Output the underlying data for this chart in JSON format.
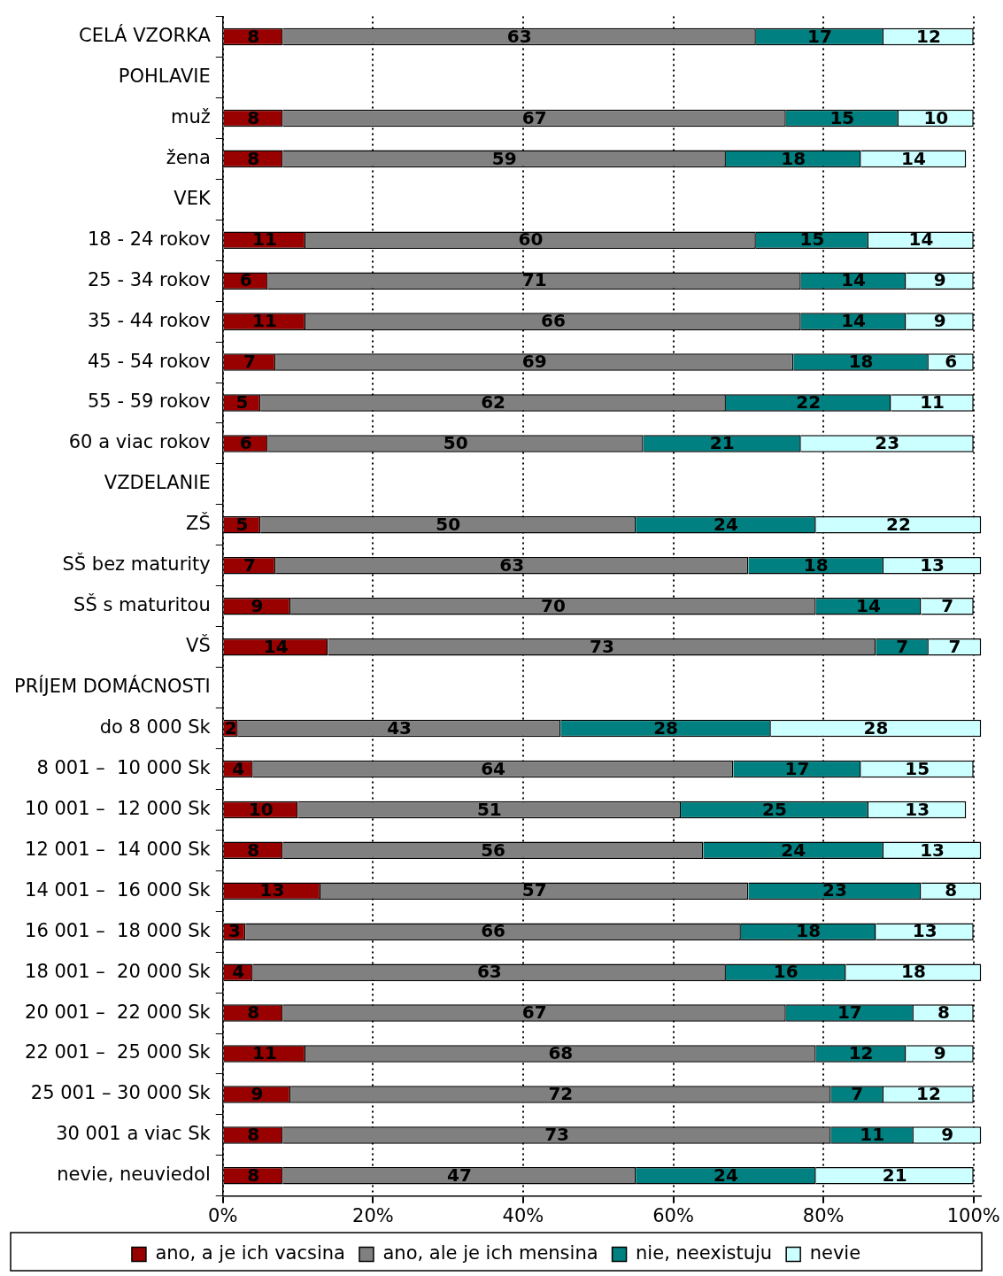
{
  "chart_data": {
    "type": "bar",
    "orientation": "horizontal",
    "stacked": true,
    "data_labels": true,
    "grid": "x",
    "line_style": "dotted",
    "legend": "bottom",
    "categories": [
      "CELÁ VZORKA",
      "POHLAVIE",
      "muž",
      "žena",
      "VEK",
      "18 - 24 rokov",
      "25 - 34 rokov",
      "35 - 44 rokov",
      "45 - 54 rokov",
      "55 - 59 rokov",
      "60 a viac rokov",
      "VZDELANIE",
      "ZŠ",
      "SŠ bez maturity",
      "SŠ s maturitou",
      "VŠ",
      "PRÍJEM DOMÁCNOSTI",
      "do 8 000 Sk",
      "8 001 –  10 000 Sk",
      "10 001 –  12 000 Sk",
      "12 001 –  14 000 Sk",
      "14 001 –  16 000 Sk",
      "16 001 –  18 000 Sk",
      "18 001 –  20 000 Sk",
      "20 001 –  22 000 Sk",
      "22 001 –  25 000 Sk",
      "25 001 – 30 000 Sk",
      "30 001 a viac Sk",
      "nevie, neuviedol"
    ],
    "xlim": [
      0,
      101
    ],
    "xticks": [
      {
        "value": 0,
        "label": "0%"
      },
      {
        "value": 20,
        "label": "20%"
      },
      {
        "value": 40,
        "label": "40%"
      },
      {
        "value": 60,
        "label": "60%"
      },
      {
        "value": 80,
        "label": "80%"
      },
      {
        "value": 100,
        "label": "100%"
      }
    ],
    "series": [
      {
        "name": "ano, a je ich vacsina",
        "color": "#990000",
        "values": [
          8,
          null,
          8,
          8,
          null,
          11,
          6,
          11,
          7,
          5,
          6,
          null,
          5,
          7,
          9,
          14,
          null,
          2,
          4,
          10,
          8,
          13,
          3,
          4,
          8,
          11,
          9,
          8,
          8
        ]
      },
      {
        "name": "ano, ale je ich mensina",
        "color": "#808080",
        "values": [
          63,
          null,
          67,
          59,
          null,
          60,
          71,
          66,
          69,
          62,
          50,
          null,
          50,
          63,
          70,
          73,
          null,
          43,
          64,
          51,
          56,
          57,
          66,
          63,
          67,
          68,
          72,
          73,
          47
        ]
      },
      {
        "name": "nie, neexistuju",
        "color": "#008080",
        "values": [
          17,
          null,
          15,
          18,
          null,
          15,
          14,
          14,
          18,
          22,
          21,
          null,
          24,
          18,
          14,
          7,
          null,
          28,
          17,
          25,
          24,
          23,
          18,
          16,
          17,
          12,
          7,
          11,
          24
        ]
      },
      {
        "name": "nevie",
        "color": "#ccffff",
        "values": [
          12,
          null,
          10,
          14,
          null,
          14,
          9,
          9,
          6,
          11,
          23,
          null,
          22,
          13,
          7,
          7,
          null,
          28,
          15,
          13,
          13,
          8,
          13,
          18,
          8,
          9,
          12,
          9,
          21
        ]
      }
    ]
  }
}
